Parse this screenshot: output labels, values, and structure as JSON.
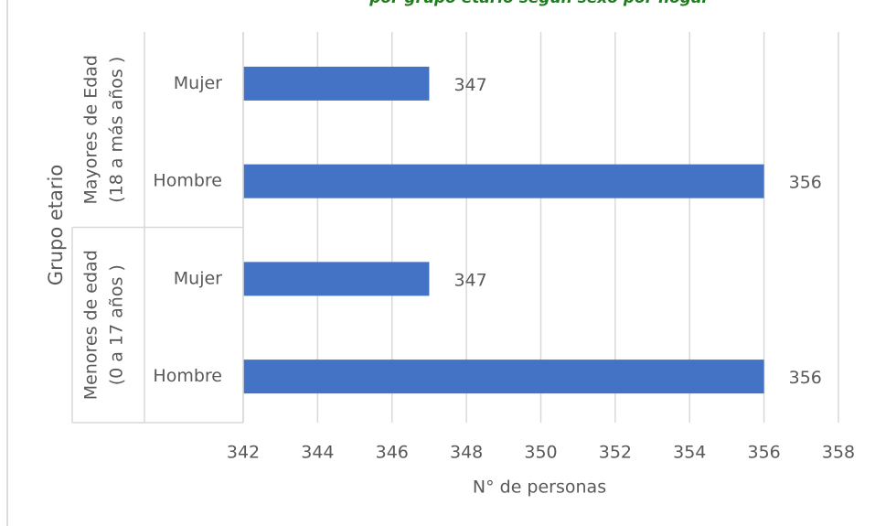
{
  "chart_data": {
    "type": "bar",
    "orientation": "horizontal",
    "title": "por grupo etario según sexo por hogar",
    "y_axis_label": "Grupo etario",
    "x_axis_label": "N° de personas",
    "color": "#4472c4",
    "groups": [
      {
        "label": [
          "Mayores de Edad",
          "(18 a más años )"
        ],
        "categories": [
          "Mujer",
          "Hombre"
        ],
        "values": [
          347,
          356
        ]
      },
      {
        "label": [
          "Menores de edad",
          "(0 a 17 años )"
        ],
        "categories": [
          "Mujer",
          "Hombre"
        ],
        "values": [
          347,
          356
        ]
      }
    ],
    "xlim": [
      342,
      358
    ],
    "xticks": [
      342,
      344,
      346,
      348,
      350,
      352,
      354,
      356,
      358
    ],
    "grid": true
  }
}
